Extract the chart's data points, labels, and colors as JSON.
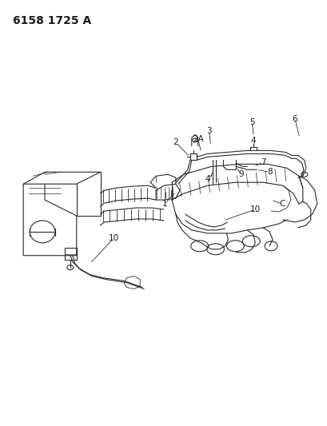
{
  "title": "6158 1725 A",
  "bg_color": "#ffffff",
  "line_color": "#2a2a2a",
  "label_color": "#1a1a1a",
  "label_fontsize": 7.5,
  "fig_width": 4.1,
  "fig_height": 5.33,
  "dpi": 100
}
